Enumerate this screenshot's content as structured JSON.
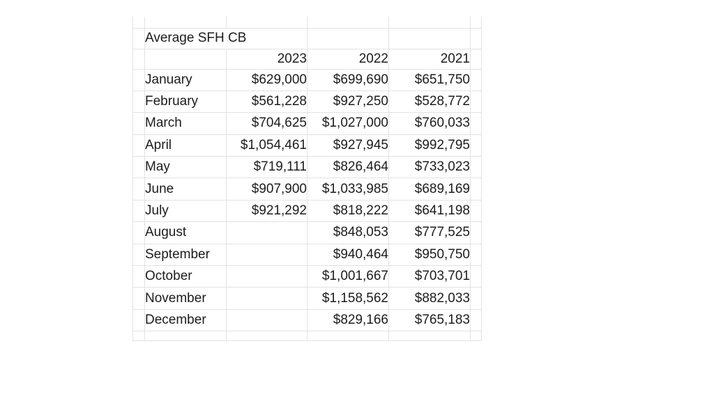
{
  "sheet": {
    "title": "Average SFH CB",
    "year_columns": [
      "2023",
      "2022",
      "2021"
    ],
    "rows": [
      {
        "month": "January",
        "v2023": "$629,000",
        "v2022": "$699,690",
        "v2021": "$651,750"
      },
      {
        "month": "February",
        "v2023": "$561,228",
        "v2022": "$927,250",
        "v2021": "$528,772"
      },
      {
        "month": "March",
        "v2023": "$704,625",
        "v2022": "$1,027,000",
        "v2021": "$760,033"
      },
      {
        "month": "April",
        "v2023": "$1,054,461",
        "v2022": "$927,945",
        "v2021": "$992,795"
      },
      {
        "month": "May",
        "v2023": "$719,111",
        "v2022": "$826,464",
        "v2021": "$733,023"
      },
      {
        "month": "June",
        "v2023": "$907,900",
        "v2022": "$1,033,985",
        "v2021": "$689,169"
      },
      {
        "month": "July",
        "v2023": "$921,292",
        "v2022": "$818,222",
        "v2021": "$641,198"
      },
      {
        "month": "August",
        "v2023": "",
        "v2022": "$848,053",
        "v2021": "$777,525"
      },
      {
        "month": "September",
        "v2023": "",
        "v2022": "$940,464",
        "v2021": "$950,750"
      },
      {
        "month": "October",
        "v2023": "",
        "v2022": "$1,001,667",
        "v2021": "$703,701"
      },
      {
        "month": "November",
        "v2023": "",
        "v2022": "$1,158,562",
        "v2021": "$882,033"
      },
      {
        "month": "December",
        "v2023": "",
        "v2022": "$829,166",
        "v2021": "$765,183"
      }
    ],
    "colors": {
      "background": "#ffffff",
      "grid_line": "#e2e2e2",
      "table_border": "#3c3c3c",
      "text": "#1c1c1c"
    }
  }
}
